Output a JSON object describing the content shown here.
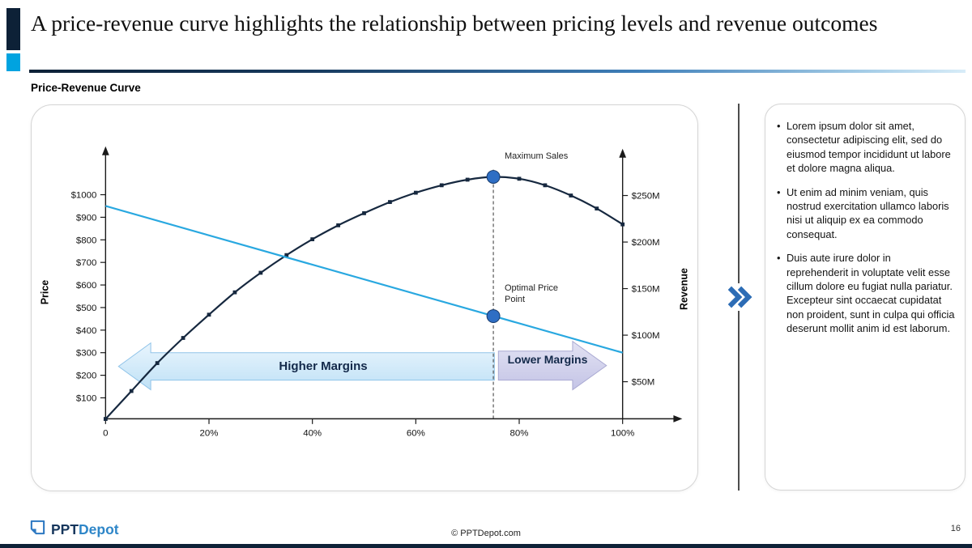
{
  "header": {
    "title": "A price-revenue curve highlights the relationship between pricing levels and revenue outcomes",
    "section_label": "Price-Revenue Curve"
  },
  "chart_data": {
    "type": "line",
    "title": "Price-Revenue Curve",
    "x_axis": {
      "range": [
        0,
        100
      ],
      "tick_values": [
        0,
        20,
        40,
        60,
        80,
        100
      ],
      "tick_labels": [
        "0",
        "20%",
        "40%",
        "60%",
        "80%",
        "100%"
      ]
    },
    "y_left_axis": {
      "label": "Price",
      "tick_values": [
        100,
        200,
        300,
        400,
        500,
        600,
        700,
        800,
        900,
        1000
      ],
      "tick_labels": [
        "$100",
        "$200",
        "$300",
        "$400",
        "$500",
        "$600",
        "$700",
        "$800",
        "$900",
        "$1000"
      ]
    },
    "y_right_axis": {
      "label": "Revenue",
      "tick_values": [
        50,
        100,
        150,
        200,
        250
      ],
      "tick_labels": [
        "$50M",
        "$100M",
        "$150M",
        "$200M",
        "$250M"
      ]
    },
    "series": [
      {
        "name": "revenue-curve",
        "axis": "right",
        "color": "#16283f",
        "marker": "square",
        "x": [
          0,
          5,
          10,
          15,
          20,
          25,
          30,
          35,
          40,
          45,
          50,
          55,
          60,
          65,
          70,
          75,
          80,
          85,
          90,
          95,
          100
        ],
        "values": [
          10,
          40,
          70,
          97,
          122,
          146,
          167,
          186,
          203,
          218,
          231,
          243,
          253,
          261,
          267,
          270,
          268,
          261,
          250,
          236,
          219
        ]
      },
      {
        "name": "price-line",
        "axis": "left",
        "color": "#29a8e0",
        "marker": "none",
        "x": [
          0,
          100
        ],
        "values": [
          950,
          300
        ]
      }
    ],
    "annotations": {
      "dashed_line_x": 75,
      "maximum_sales": {
        "label": "Maximum Sales",
        "x": 75,
        "value_right": 270
      },
      "optimal_price_point": {
        "label": "Optimal Price Point",
        "x": 75,
        "value_left": 462
      },
      "higher_margins": {
        "label": "Higher Margins",
        "x_start": 2,
        "x_end": 75
      },
      "lower_margins": {
        "label": "Lower Margins",
        "x_start": 75,
        "x_end": 100
      }
    }
  },
  "sidebar": {
    "bullets": [
      "Lorem ipsum dolor sit amet, consectetur adipiscing elit, sed do eiusmod tempor incididunt ut labore et dolore magna aliqua.",
      "Ut enim ad minim veniam, quis nostrud exercitation ullamco laboris nisi ut aliquip ex ea commodo consequat.",
      "Duis aute irure dolor in reprehenderit in voluptate velit esse cillum dolore eu fugiat nulla pariatur. Excepteur sint occaecat cupidatat non proident, sunt in culpa qui officia deserunt mollit anim id est laborum."
    ]
  },
  "footer": {
    "logo_prefix": "PPT",
    "logo_suffix": "Depot",
    "copyright": "© PPTDepot.com",
    "page_number": "16"
  },
  "colors": {
    "accent_dark": "#0d2137",
    "accent_bright_blue": "#00a3e0",
    "chevron_blue": "#2c6cb5",
    "higher_margins_fill": "#cfe8f9",
    "lower_margins_fill": "#cfcfe9",
    "point_blue": "#2e6ec4"
  }
}
